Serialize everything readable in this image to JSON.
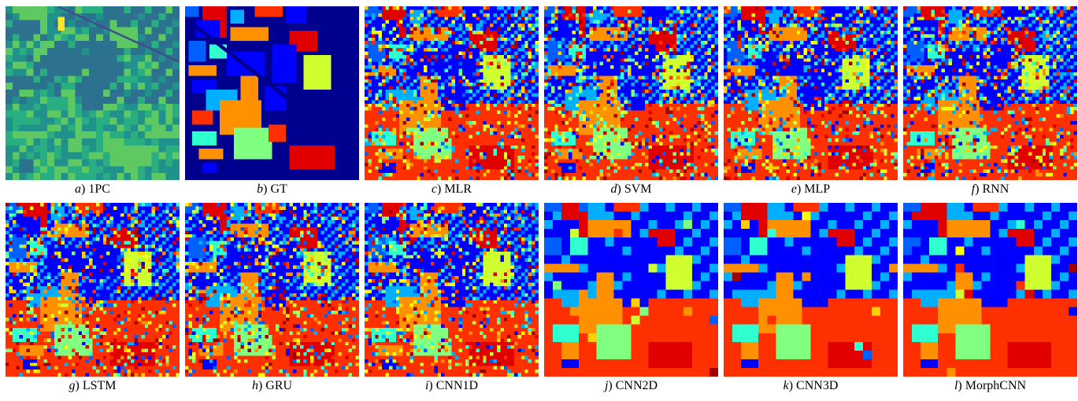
{
  "figure": {
    "panels": [
      {
        "letter": "a",
        "name": "1PC",
        "style": "pc"
      },
      {
        "letter": "b",
        "name": "GT",
        "style": "gt"
      },
      {
        "letter": "c",
        "name": "MLR",
        "style": "noisy"
      },
      {
        "letter": "d",
        "name": "SVM",
        "style": "noisy"
      },
      {
        "letter": "e",
        "name": "MLP",
        "style": "noisy"
      },
      {
        "letter": "f",
        "name": "RNN",
        "style": "noisy"
      },
      {
        "letter": "g",
        "name": "LSTM",
        "style": "noisy"
      },
      {
        "letter": "h",
        "name": "GRU",
        "style": "noisy"
      },
      {
        "letter": "i",
        "name": "CNN1D",
        "style": "noisy"
      },
      {
        "letter": "j",
        "name": "CNN2D",
        "style": "smooth"
      },
      {
        "letter": "k",
        "name": "CNN3D",
        "style": "smooth"
      },
      {
        "letter": "l",
        "name": "MorphCNN",
        "style": "smooth"
      }
    ],
    "colors": {
      "background": "#00008f",
      "classes": [
        "#0000ff",
        "#0060ff",
        "#00b0ff",
        "#30ffd0",
        "#80ff80",
        "#d0ff30",
        "#ffd000",
        "#ff9000",
        "#ff3000",
        "#e00000",
        "#a00000",
        "#ffff00"
      ],
      "pc_palette": [
        "#3b528b",
        "#2c728e",
        "#21918c",
        "#28ae80",
        "#5ec962",
        "#addc30",
        "#fde725"
      ]
    }
  }
}
